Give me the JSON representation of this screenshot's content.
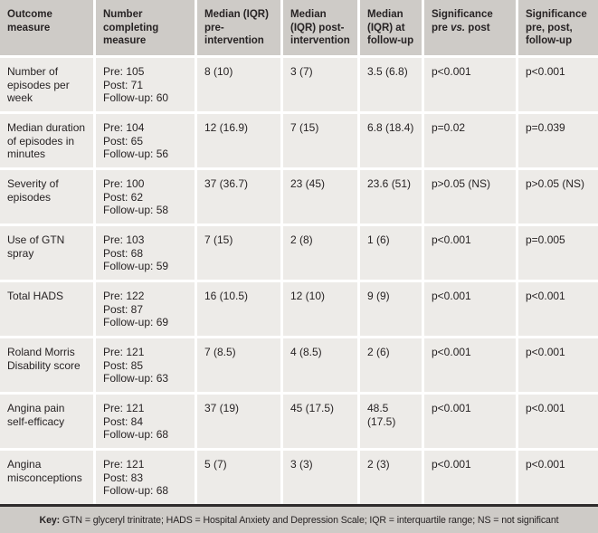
{
  "colors": {
    "header_bg": "#cecbc7",
    "body_bg": "#edebe8",
    "gap": "#ffffff",
    "divider": "#2e2b2c",
    "text": "#272324"
  },
  "header": {
    "outcome": "Outcome measure",
    "completing": "Number completing measure",
    "median_pre": "Median (IQR) pre-intervention",
    "median_post": "Median (IQR) post-intervention",
    "median_followup": "Median (IQR) at follow-up",
    "sig_pre_post": {
      "a": "Significance pre ",
      "b": "vs.",
      "c": " post"
    },
    "sig_all": "Significance pre, post, follow-up"
  },
  "rows": [
    {
      "outcome": "Number of episodes per week",
      "pre": "Pre: 105",
      "post": "Post: 71",
      "followup": "Follow-up: 60",
      "median_pre": "8 (10)",
      "median_post": "3 (7)",
      "median_followup": "3.5 (6.8)",
      "sig_pre_post": "p<0.001",
      "sig_all": "p<0.001"
    },
    {
      "outcome": "Median duration of episodes in minutes",
      "pre": "Pre: 104",
      "post": "Post: 65",
      "followup": "Follow-up: 56",
      "median_pre": "12 (16.9)",
      "median_post": "7 (15)",
      "median_followup": "6.8 (18.4)",
      "sig_pre_post": "p=0.02",
      "sig_all": "p=0.039"
    },
    {
      "outcome": "Severity of episodes",
      "pre": "Pre: 100",
      "post": "Post: 62",
      "followup": "Follow-up: 58",
      "median_pre": "37 (36.7)",
      "median_post": "23 (45)",
      "median_followup": "23.6 (51)",
      "sig_pre_post": "p>0.05 (NS)",
      "sig_all": "p>0.05 (NS)"
    },
    {
      "outcome": "Use of GTN spray",
      "pre": "Pre: 103",
      "post": "Post: 68",
      "followup": "Follow-up: 59",
      "median_pre": "7 (15)",
      "median_post": "2 (8)",
      "median_followup": "1 (6)",
      "sig_pre_post": "p<0.001",
      "sig_all": "p=0.005"
    },
    {
      "outcome": "Total HADS",
      "pre": "Pre: 122",
      "post": "Post: 87",
      "followup": "Follow-up: 69",
      "median_pre": "16 (10.5)",
      "median_post": "12 (10)",
      "median_followup": "9 (9)",
      "sig_pre_post": "p<0.001",
      "sig_all": "p<0.001"
    },
    {
      "outcome": "Roland Morris Disability score",
      "pre": "Pre: 121",
      "post": "Post: 85",
      "followup": "Follow-up: 63",
      "median_pre": "7 (8.5)",
      "median_post": "4 (8.5)",
      "median_followup": "2 (6)",
      "sig_pre_post": "p<0.001",
      "sig_all": "p<0.001"
    },
    {
      "outcome": "Angina pain self-efficacy",
      "pre": "Pre: 121",
      "post": "Post: 84",
      "followup": "Follow-up: 68",
      "median_pre": "37 (19)",
      "median_post": "45 (17.5)",
      "median_followup": "48.5 (17.5)",
      "sig_pre_post": "p<0.001",
      "sig_all": "p<0.001"
    },
    {
      "outcome": "Angina misconceptions",
      "pre": "Pre: 121",
      "post": "Post: 83",
      "followup": "Follow-up: 68",
      "median_pre": "5 (7)",
      "median_post": "3 (3)",
      "median_followup": "2 (3)",
      "sig_pre_post": "p<0.001",
      "sig_all": "p<0.001"
    }
  ],
  "footer": {
    "key_label": "Key:",
    "text": " GTN = glyceryl trinitrate; HADS = Hospital Anxiety and Depression Scale; IQR = interquartile range; NS = not significant"
  }
}
